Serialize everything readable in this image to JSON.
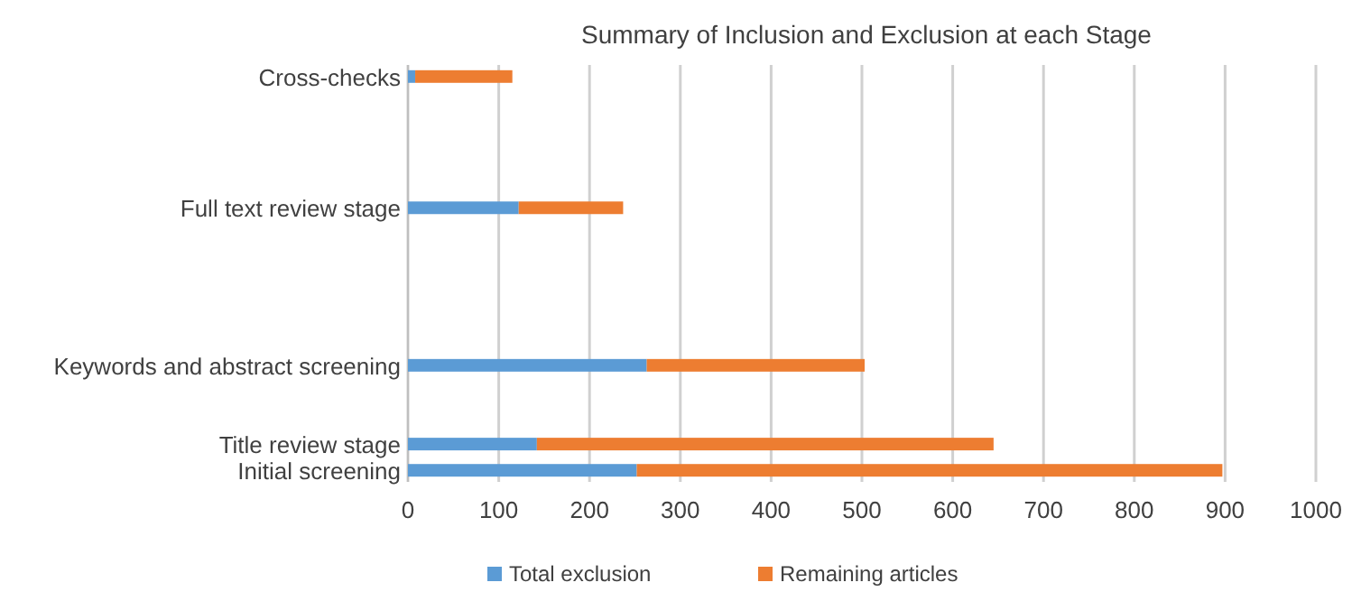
{
  "chart_data": {
    "type": "bar",
    "orientation": "horizontal",
    "stacked": true,
    "title": "Summary of Inclusion and Exclusion at each Stage",
    "categories": [
      "Cross-checks",
      null,
      null,
      null,
      null,
      "Full text review stage",
      null,
      null,
      null,
      null,
      null,
      "Keywords and abstract screening",
      null,
      null,
      "Title review stage",
      "Initial screening"
    ],
    "series": [
      {
        "name": "Total exclusion",
        "color": "#5b9bd5",
        "values": [
          8,
          null,
          null,
          null,
          null,
          122,
          null,
          null,
          null,
          null,
          null,
          263,
          null,
          null,
          142,
          252
        ]
      },
      {
        "name": "Remaining articles",
        "color": "#ed7d31",
        "values": [
          107,
          null,
          null,
          null,
          null,
          115,
          null,
          null,
          null,
          null,
          null,
          240,
          null,
          null,
          503,
          645
        ]
      }
    ],
    "xlim": [
      0,
      1000
    ],
    "xticks": [
      0,
      100,
      200,
      300,
      400,
      500,
      600,
      700,
      800,
      900,
      1000
    ],
    "grid": "x",
    "legend": "bottom"
  }
}
